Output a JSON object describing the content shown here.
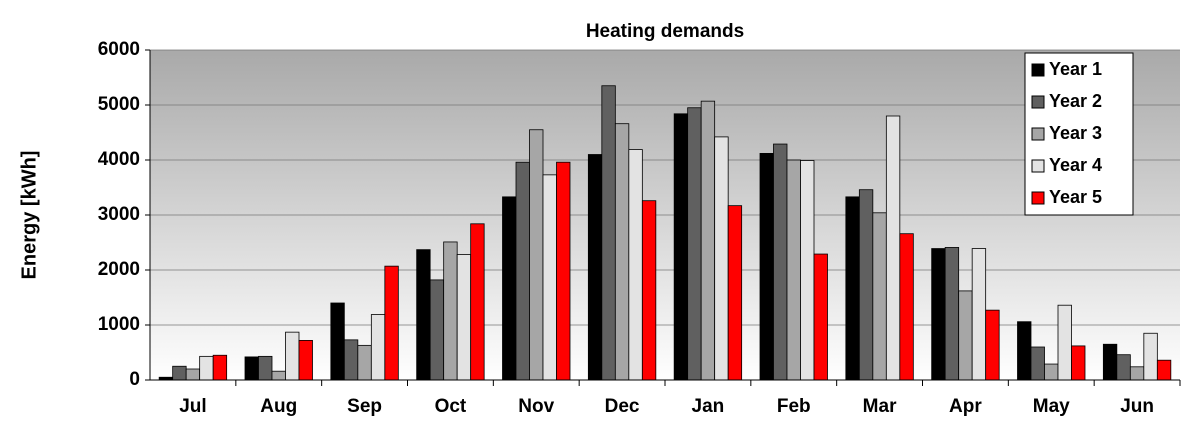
{
  "chart_data": {
    "type": "bar",
    "title": "Heating demands",
    "y_label": "Energy [kWh]",
    "categories": [
      "Jul",
      "Aug",
      "Sep",
      "Oct",
      "Nov",
      "Dec",
      "Jan",
      "Feb",
      "Mar",
      "Apr",
      "May",
      "Jun"
    ],
    "series": [
      {
        "name": "Year 1",
        "color": "#000000",
        "values": [
          50,
          420,
          1400,
          2370,
          3330,
          4100,
          4840,
          4120,
          3330,
          2390,
          1060,
          650
        ]
      },
      {
        "name": "Year 2",
        "color": "#606060",
        "values": [
          250,
          430,
          730,
          1820,
          3960,
          5350,
          4950,
          4290,
          3460,
          2410,
          600,
          460
        ]
      },
      {
        "name": "Year 3",
        "color": "#a6a6a6",
        "values": [
          200,
          160,
          630,
          2510,
          4550,
          4660,
          5070,
          4000,
          3040,
          1620,
          290,
          240
        ]
      },
      {
        "name": "Year 4",
        "color": "#e3e3e3",
        "values": [
          430,
          870,
          1190,
          2280,
          3730,
          4190,
          4420,
          3990,
          4800,
          2390,
          1360,
          850
        ]
      },
      {
        "name": "Year 5",
        "color": "#ff0000",
        "values": [
          450,
          720,
          2070,
          2840,
          3960,
          3260,
          3170,
          2290,
          2660,
          1270,
          620,
          360
        ]
      }
    ],
    "ylim": [
      0,
      6000
    ],
    "yticks": [
      0,
      1000,
      2000,
      3000,
      4000,
      5000,
      6000
    ],
    "grid": true,
    "legend": "upper right"
  }
}
